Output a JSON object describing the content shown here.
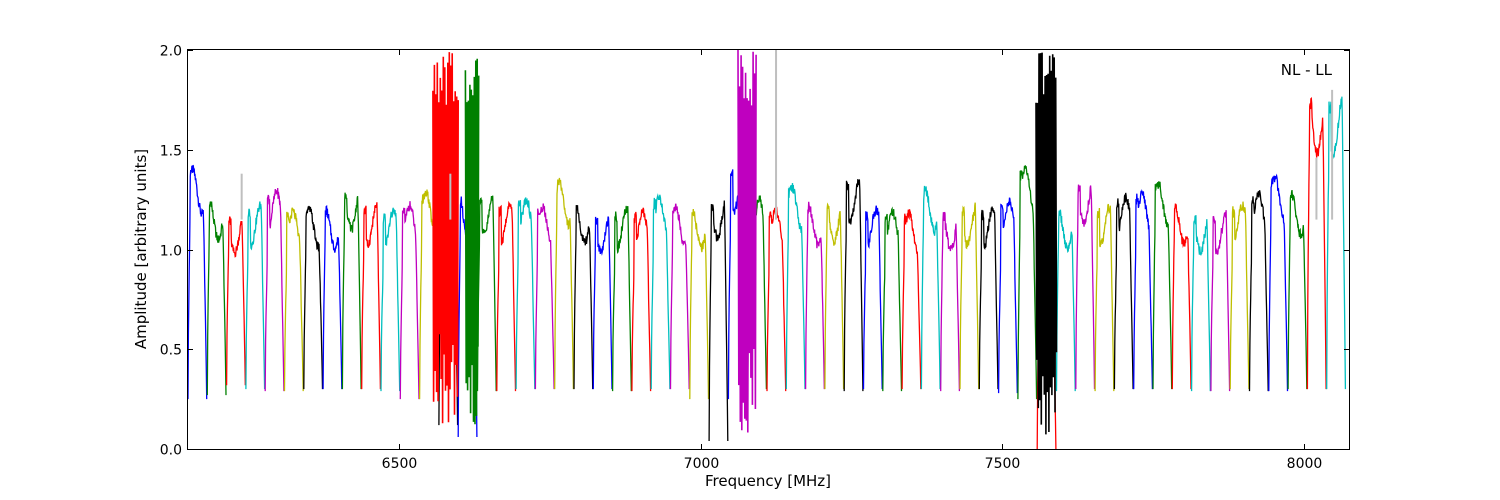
{
  "chart_data": {
    "type": "line",
    "annotation": "NL - LL",
    "xlabel": "Frequency [MHz]",
    "ylabel": "Amplitude [arbitrary units]",
    "xlim": [
      6150,
      8075
    ],
    "ylim": [
      0,
      2.0
    ],
    "x_ticks": [
      6500,
      7000,
      7500,
      8000
    ],
    "x_tick_labels": [
      "6500",
      "7000",
      "7500",
      "8000"
    ],
    "y_ticks": [
      0.0,
      0.5,
      1.0,
      1.5,
      2.0
    ],
    "y_tick_labels": [
      "0.0",
      "0.5",
      "1.0",
      "1.5",
      "2.0"
    ],
    "grid": false,
    "legend": "none",
    "band_width_mhz": 32,
    "band_colors": [
      "#0000ff",
      "#008000",
      "#ff0000",
      "#00bfbf",
      "#bf00bf",
      "#bfbf00",
      "#000000"
    ],
    "bands_start_freq": [
      6150,
      6182,
      6214,
      6246,
      6278,
      6310,
      6342,
      6374,
      6406,
      6438,
      6470,
      6502,
      6534,
      6566,
      6598,
      6630,
      6662,
      6694,
      6726,
      6758,
      6790,
      6822,
      6854,
      6886,
      6918,
      6950,
      6982,
      7014,
      7046,
      7078,
      7110,
      7142,
      7174,
      7206,
      7238,
      7270,
      7302,
      7334,
      7366,
      7398,
      7430,
      7462,
      7494,
      7526,
      7558,
      7590,
      7622,
      7654,
      7686,
      7718,
      7750,
      7782,
      7814,
      7846,
      7878,
      7910,
      7942,
      7974,
      8006,
      8038
    ],
    "bands_peak": [
      1.4,
      1.25,
      1.17,
      1.22,
      1.29,
      1.19,
      1.2,
      1.2,
      1.31,
      1.22,
      1.19,
      1.22,
      1.29,
      1.25,
      1.27,
      1.28,
      1.22,
      1.25,
      1.21,
      1.34,
      1.23,
      1.18,
      1.2,
      1.19,
      1.26,
      1.21,
      1.2,
      1.26,
      1.41,
      1.25,
      1.2,
      1.31,
      1.22,
      1.24,
      1.36,
      1.2,
      1.19,
      1.18,
      1.3,
      1.19,
      1.22,
      1.2,
      1.24,
      1.4,
      1.0,
      1.2,
      1.34,
      1.21,
      1.26,
      1.28,
      1.33,
      1.22,
      1.18,
      1.18,
      1.22,
      1.28,
      1.36,
      1.28,
      1.76,
      1.76
    ],
    "bands_edge": [
      0.25,
      0.27,
      0.32,
      0.3,
      0.29,
      0.29,
      0.3,
      0.3,
      0.3,
      0.3,
      0.29,
      0.25,
      0.25,
      0.12,
      0.06,
      0.29,
      0.29,
      0.3,
      0.3,
      0.3,
      0.3,
      0.3,
      0.29,
      0.29,
      0.3,
      0.3,
      0.25,
      0.04,
      0.25,
      0.3,
      0.29,
      0.3,
      0.3,
      0.3,
      0.29,
      0.3,
      0.29,
      0.3,
      0.3,
      0.29,
      0.3,
      0.3,
      0.28,
      0.25,
      0.0,
      0.29,
      0.3,
      0.29,
      0.3,
      0.3,
      0.3,
      0.3,
      0.29,
      0.29,
      0.3,
      0.29,
      0.29,
      0.3,
      0.3,
      0.3
    ],
    "rfi_spikes": [
      {
        "x_range": [
          6556,
          6598
        ],
        "y_range": [
          0.12,
          2.0
        ],
        "color": "#ff0000"
      },
      {
        "x_range": [
          6610,
          6632
        ],
        "y_range": [
          0.06,
          2.0
        ],
        "color": "#008000"
      },
      {
        "x_range": [
          7062,
          7092
        ],
        "y_range": [
          0.04,
          2.0
        ],
        "color": "#bf00bf"
      },
      {
        "x_range": [
          7556,
          7590
        ],
        "y_range": [
          0.0,
          2.0
        ],
        "color": "#000000"
      }
    ],
    "grey_overlay_spikes": [
      {
        "x": 6239,
        "y": 1.38
      },
      {
        "x": 6585,
        "y": 1.38
      },
      {
        "x": 7125,
        "y": 2.0
      },
      {
        "x": 8021,
        "y": 1.46
      },
      {
        "x": 8047,
        "y": 1.8
      }
    ]
  }
}
